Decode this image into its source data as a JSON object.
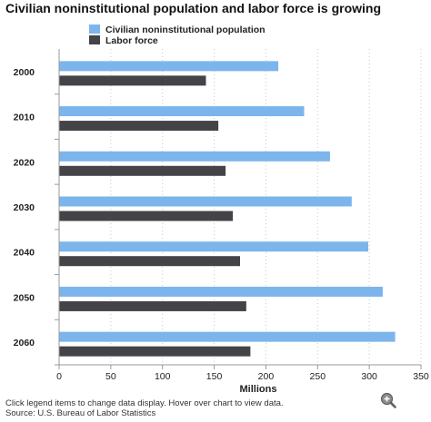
{
  "chart_data": {
    "type": "bar",
    "orientation": "horizontal",
    "title": "Civilian noninstitutional population and labor force is growing",
    "categories": [
      "2000",
      "2010",
      "2020",
      "2030",
      "2040",
      "2050",
      "2060"
    ],
    "series": [
      {
        "name": "Civilian noninstitutional population",
        "color": "#7cb5ec",
        "values": [
          212,
          237,
          262,
          283,
          299,
          313,
          325
        ]
      },
      {
        "name": "Labor force",
        "color": "#434348",
        "values": [
          142,
          154,
          161,
          168,
          175,
          181,
          185
        ]
      }
    ],
    "xlabel": "Millions",
    "ylabel": "",
    "xlim": [
      0,
      350
    ],
    "x_ticks": [
      "0",
      "50",
      "100",
      "150",
      "200",
      "250",
      "300",
      "350"
    ],
    "grid": "vertical dotted",
    "legend_position": "top"
  },
  "footer": {
    "line1": "Click legend items to change data display. Hover over chart to view data.",
    "line2": "Source: U.S. Bureau of Labor Statistics"
  },
  "icons": {
    "zoom": "zoom-in-icon"
  }
}
